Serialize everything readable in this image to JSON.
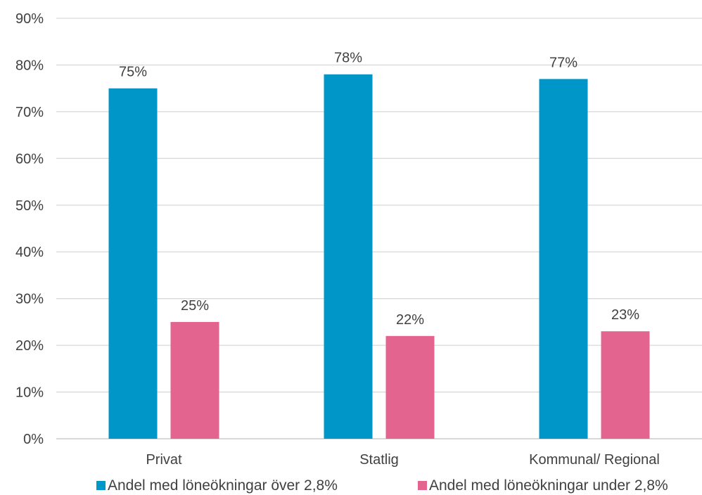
{
  "chart_data": {
    "type": "bar",
    "categories": [
      "Privat",
      "Statlig",
      "Kommunal/ Regional"
    ],
    "series": [
      {
        "name": "Andel med löneökningar över 2,8%",
        "values": [
          75,
          78,
          77
        ],
        "labels": [
          "75%",
          "78%",
          "77%"
        ],
        "color": "#0096C8"
      },
      {
        "name": "Andel med löneökningar under 2,8%",
        "values": [
          25,
          22,
          23
        ],
        "labels": [
          "25%",
          "22%",
          "23%"
        ],
        "color": "#E3648E"
      }
    ],
    "ylim": [
      0,
      90
    ],
    "y_ticks": [
      0,
      10,
      20,
      30,
      40,
      50,
      60,
      70,
      80,
      90
    ],
    "y_tick_labels": [
      "0%",
      "10%",
      "20%",
      "30%",
      "40%",
      "50%",
      "60%",
      "70%",
      "80%",
      "90%"
    ],
    "grid": true,
    "legend_position": "bottom",
    "title": "",
    "xlabel": "",
    "ylabel": ""
  }
}
